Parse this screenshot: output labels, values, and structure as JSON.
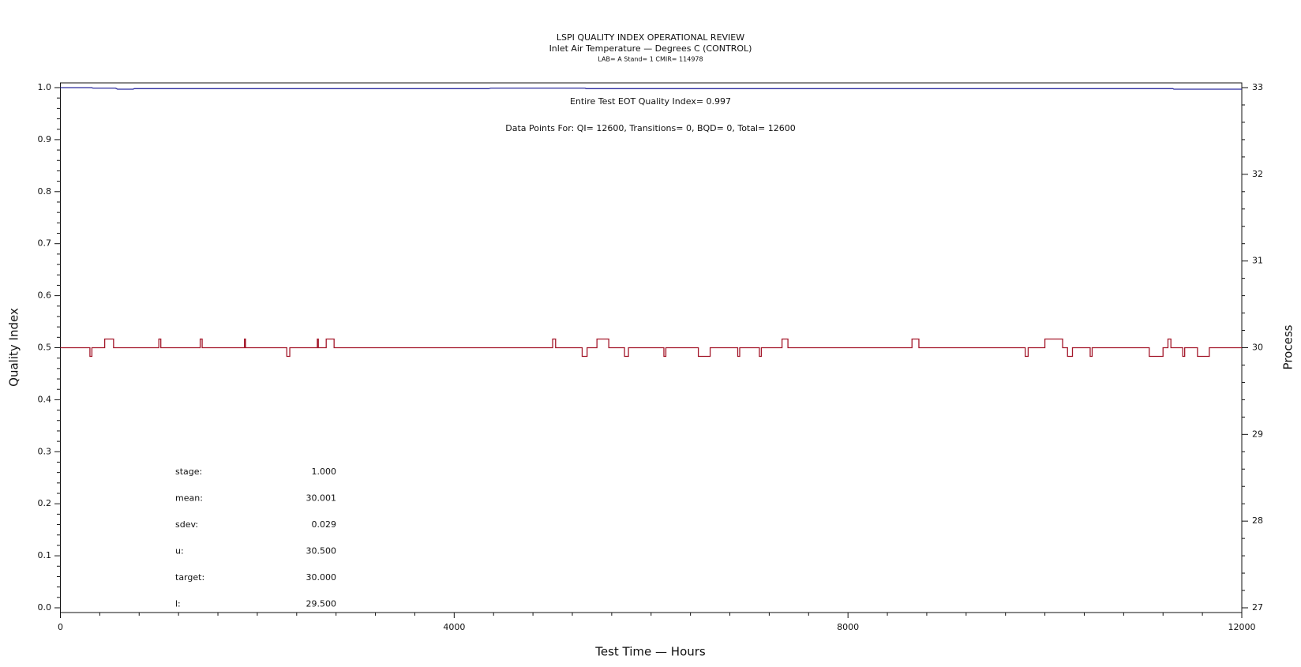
{
  "chart_data": {
    "type": "line",
    "title": "LSPI QUALITY INDEX OPERATIONAL REVIEW",
    "subtitle": "Inlet Air Temperature — Degrees C (CONTROL)",
    "subtitle2": "LAB= A Stand= 1 CMIR= 114978",
    "annotations": [
      "Entire Test EOT Quality Index=   0.997",
      "Data Points For: QI= 12600, Transitions=     0, BQD=     0, Total= 12600"
    ],
    "stats": [
      {
        "label": "stage:",
        "value": "1.000"
      },
      {
        "label": "mean:",
        "value": "30.001"
      },
      {
        "label": "sdev:",
        "value": "0.029"
      },
      {
        "label": "u:",
        "value": "30.500"
      },
      {
        "label": "target:",
        "value": "30.000"
      },
      {
        "label": "l:",
        "value": "29.500"
      }
    ],
    "x_label": "Test Time — Hours",
    "y_label": "Quality Index",
    "y2_label": "Process",
    "xlim": [
      0,
      12000
    ],
    "xticks": [
      0,
      4000,
      8000,
      12000
    ],
    "ylim": [
      0,
      1
    ],
    "yticks": [
      {
        "value": 0,
        "label": "0.0"
      },
      0.1,
      0.2,
      0.3,
      0.4,
      0.5,
      0.6,
      0.7,
      0.8,
      0.9,
      {
        "value": 1,
        "label": "1.0"
      }
    ],
    "y2lim": [
      27,
      33
    ],
    "y2ticks": [
      27,
      28,
      29,
      30,
      31,
      32,
      33
    ],
    "series": [
      {
        "color": "#2b2b9e",
        "axis": "y",
        "x": [
          0,
          320,
          330,
          560,
          580,
          740,
          750,
          4350,
          4370,
          4420,
          4440,
          5330,
          5340,
          11300,
          11310,
          12000
        ],
        "values": [
          1.0,
          1.0,
          0.999,
          0.999,
          0.997,
          0.997,
          0.998,
          0.998,
          0.999,
          0.999,
          0.999,
          0.999,
          0.998,
          0.998,
          0.997,
          0.997
        ]
      },
      {
        "color": "#a3172a",
        "axis": "y2",
        "x": [
          0,
          300,
          300,
          320,
          320,
          450,
          450,
          540,
          540,
          1000,
          1000,
          1020,
          1020,
          1420,
          1420,
          1440,
          1440,
          1870,
          1870,
          1880,
          1880,
          2300,
          2300,
          2330,
          2330,
          2610,
          2610,
          2620,
          2620,
          2700,
          2700,
          2780,
          2780,
          5000,
          5000,
          5030,
          5030,
          5300,
          5300,
          5350,
          5350,
          5450,
          5450,
          5570,
          5570,
          5730,
          5730,
          5770,
          5770,
          6130,
          6130,
          6150,
          6150,
          6480,
          6480,
          6600,
          6600,
          6880,
          6880,
          6900,
          6900,
          7100,
          7100,
          7120,
          7120,
          7330,
          7330,
          7390,
          7390,
          8650,
          8650,
          8720,
          8720,
          9800,
          9800,
          9830,
          9830,
          10000,
          10000,
          10180,
          10180,
          10230,
          10230,
          10280,
          10280,
          10460,
          10460,
          10480,
          10480,
          11060,
          11060,
          11200,
          11200,
          11250,
          11250,
          11280,
          11280,
          11400,
          11400,
          11420,
          11420,
          11550,
          11550,
          11670,
          11670,
          12000
        ],
        "values": [
          30,
          30,
          29.9,
          29.9,
          30,
          30,
          30.1,
          30.1,
          30,
          30,
          30.1,
          30.1,
          30,
          30,
          30.1,
          30.1,
          30,
          30,
          30.1,
          30.1,
          30,
          30,
          29.9,
          29.9,
          30,
          30,
          30.1,
          30.1,
          30,
          30,
          30.1,
          30.1,
          30,
          30,
          30.1,
          30.1,
          30,
          30,
          29.9,
          29.9,
          30,
          30,
          30.1,
          30.1,
          30,
          30,
          29.9,
          29.9,
          30,
          30,
          29.9,
          29.9,
          30,
          30,
          29.9,
          29.9,
          30,
          30,
          29.9,
          29.9,
          30,
          30,
          29.9,
          29.9,
          30,
          30,
          30.1,
          30.1,
          30,
          30,
          30.1,
          30.1,
          30,
          30,
          29.9,
          29.9,
          30,
          30,
          30.1,
          30.1,
          30,
          30,
          29.9,
          29.9,
          30,
          30,
          29.9,
          29.9,
          30,
          30,
          29.9,
          29.9,
          30,
          30,
          30.1,
          30.1,
          30,
          30,
          29.9,
          29.9,
          30,
          30,
          29.9,
          29.9,
          30,
          30
        ]
      }
    ]
  }
}
